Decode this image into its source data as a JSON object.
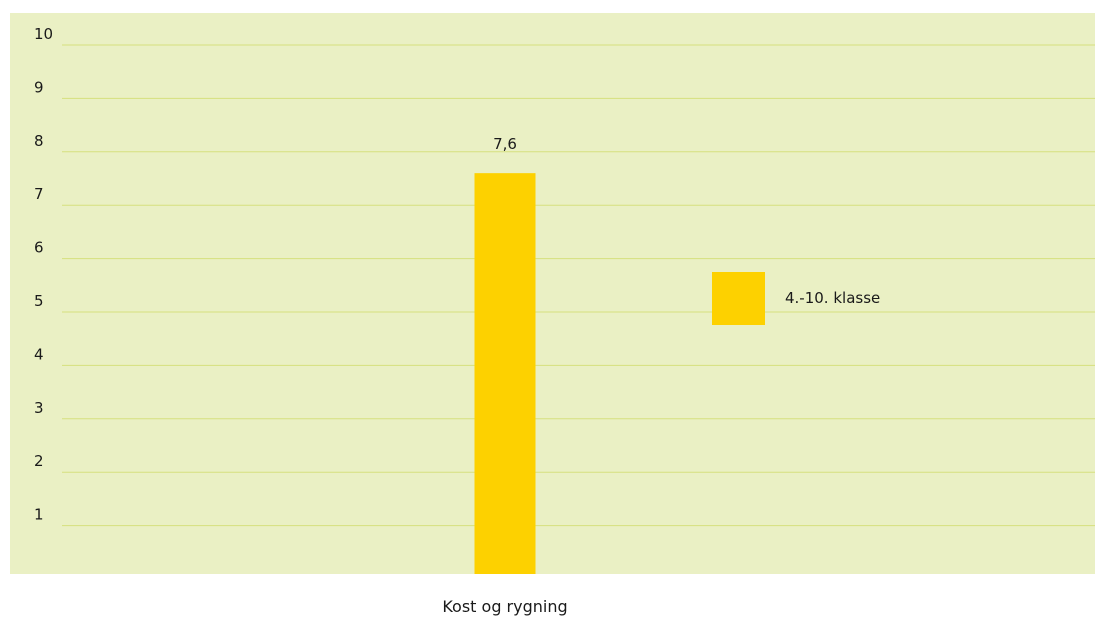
{
  "chart_data": {
    "type": "bar",
    "categories": [
      "Kost og rygning"
    ],
    "series": [
      {
        "name": "4.-10. klasse",
        "values": [
          7.6
        ],
        "data_labels": [
          "7,6"
        ],
        "color": "#FDD100"
      }
    ],
    "title": "",
    "xlabel": "",
    "ylabel": "",
    "ylim": [
      0,
      10
    ],
    "yticks": [
      1,
      2,
      3,
      4,
      5,
      6,
      7,
      8,
      9,
      10
    ],
    "ytick_labels": [
      "1",
      "2",
      "3",
      "4",
      "5",
      "6",
      "7",
      "8",
      "9",
      "10"
    ],
    "grid": true,
    "legend_position": "right",
    "colors": {
      "plot_background": "#EAF0C4",
      "gridline": "#D6E07E",
      "bar": "#FDD100"
    }
  }
}
